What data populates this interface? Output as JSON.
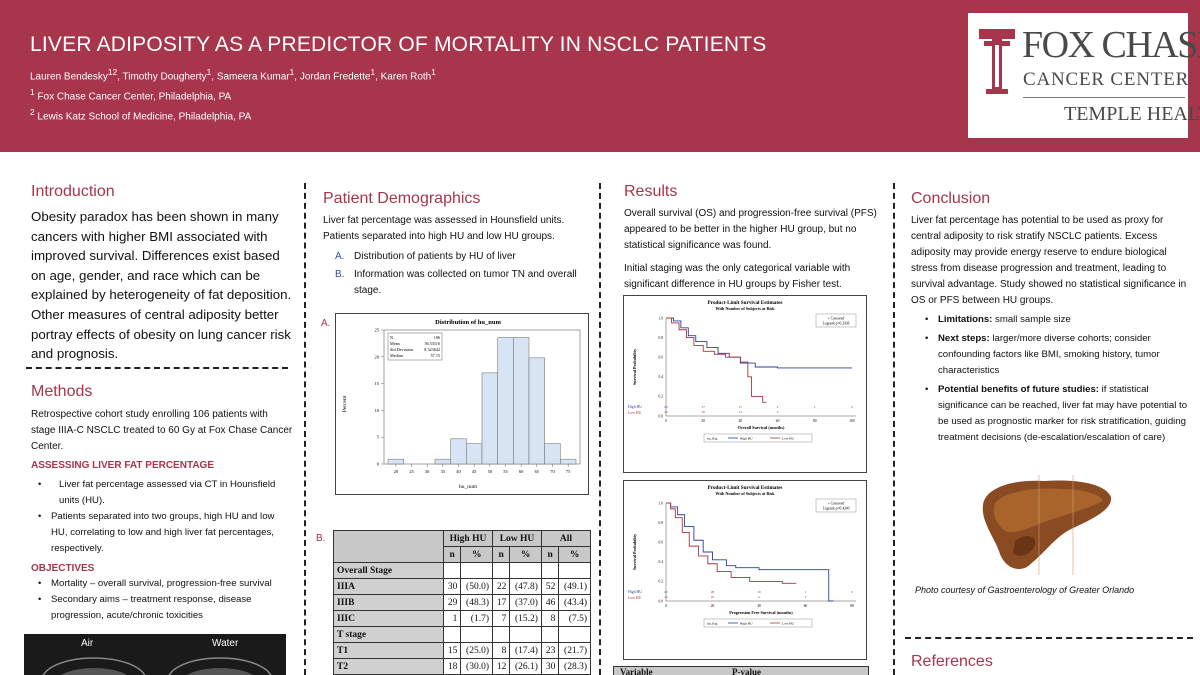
{
  "header": {
    "title": "LIVER ADIPOSITY AS A PREDICTOR OF MORTALITY IN NSCLC PATIENTS",
    "authors": [
      {
        "name": "Lauren Bendesky",
        "sup": "12"
      },
      {
        "name": "Timothy Dougherty",
        "sup": "1"
      },
      {
        "name": "Sameera Kumar",
        "sup": "1"
      },
      {
        "name": "Jordan Fredette",
        "sup": "1"
      },
      {
        "name": "Karen Roth",
        "sup": "1"
      }
    ],
    "aff1_sup": "1",
    "aff1": "Fox Chase Cancer Center, Philadelphia, PA",
    "aff2_sup": "2",
    "aff2": "Lewis Katz School of Medicine, Philadelphia, PA"
  },
  "logo": {
    "line1": "FOX CHASE",
    "line2": "CANCER CENTER",
    "line3": "TEMPLE HEALTH",
    "mark": "T"
  },
  "intro": {
    "heading": "Introduction",
    "text": "Obesity paradox has been shown in many cancers with higher BMI associated with improved survival. Differences exist based on age, gender, and race which can be explained by heterogeneity of fat deposition. Other measures of central adiposity better portray effects of obesity on lung cancer risk and prognosis."
  },
  "methods": {
    "heading": "Methods",
    "text": "Retrospective cohort study enrolling 106 patients with stage IIIA-C NSCLC treated to 60 Gy at Fox Chase Cancer Center.",
    "sub1": "ASSESSING LIVER FAT PERCENTAGE",
    "bullets1": [
      "Liver fat percentage assessed via CT in Hounsfield units (HU).",
      "Patients separated into two groups, high HU and low HU, correlating to low and high liver fat percentages, respectively."
    ],
    "sub2": "OBJECTIVES",
    "bullets2": [
      "Mortality – overall survival, progression-free survival",
      "Secondary aims – treatment response, disease progression, acute/chronic toxicities"
    ],
    "ct_left": "Air",
    "ct_right": "Water"
  },
  "demographics": {
    "heading": "Patient Demographics",
    "text": "Liver fat percentage was assessed in Hounsfield units. Patients separated into high HU and low HU groups.",
    "list": [
      {
        "marker": "A.",
        "text": "Distribution of patients by HU of liver"
      },
      {
        "marker": "B.",
        "text": "Information was collected on tumor TN and overall stage."
      }
    ],
    "fig_a_label": "A.",
    "fig_b_label": "B.",
    "table": {
      "groups": [
        "High HU",
        "Low HU",
        "All"
      ],
      "subheads": [
        "n",
        "%",
        "n",
        "%",
        "n",
        "%"
      ],
      "rows": [
        {
          "label": "Overall Stage",
          "section": true,
          "cells": []
        },
        {
          "label": "IIIA",
          "section": false,
          "cells": [
            "30",
            "(50.0)",
            "22",
            "(47.8)",
            "52",
            "(49.1)"
          ]
        },
        {
          "label": "IIIB",
          "section": false,
          "cells": [
            "29",
            "(48.3)",
            "17",
            "(37.0)",
            "46",
            "(43.4)"
          ]
        },
        {
          "label": "IIIC",
          "section": false,
          "cells": [
            "1",
            "(1.7)",
            "7",
            "(15.2)",
            "8",
            "(7.5)"
          ]
        },
        {
          "label": "T stage",
          "section": true,
          "cells": []
        },
        {
          "label": "T1",
          "section": false,
          "cells": [
            "15",
            "(25.0)",
            "8",
            "(17.4)",
            "23",
            "(21.7)"
          ]
        },
        {
          "label": "T2",
          "section": false,
          "cells": [
            "18",
            "(30.0)",
            "12",
            "(26.1)",
            "30",
            "(28.3)"
          ]
        }
      ]
    }
  },
  "results": {
    "heading": "Results",
    "text1": "Overall survival (OS) and progression-free survival (PFS) appeared to be better in the higher HU group, but no statistical significance was found.",
    "text2": "Initial staging was the only categorical variable with significant difference in HU groups by Fisher test.",
    "table_head": [
      "Variable",
      "P-value"
    ],
    "km": [
      {
        "title": "Product-Limit Survival Estimates",
        "subtitle": "With Number of Subjects at Risk",
        "legend1": "+ Censored",
        "legend2": "Logrank p=0.2436",
        "ylabel": "Survival Probability",
        "xlabel": "Overall Survival (months)",
        "xticks": [
          "0",
          "20",
          "40",
          "60",
          "80",
          "100"
        ],
        "yticks": [
          "0.0",
          "0.2",
          "0.4",
          "0.6",
          "0.8",
          "1.0"
        ],
        "risk_labels": [
          "High HU",
          "Low HU"
        ],
        "risk_high": [
          "60",
          "37",
          "17",
          "2",
          "1",
          "0"
        ],
        "risk_low": [
          "46",
          "28",
          "14",
          "0",
          "",
          ""
        ],
        "foot": [
          "hu_flag",
          "High HU",
          "Low HU"
        ]
      },
      {
        "title": "Product-Limit Survival Estimates",
        "subtitle": "With Number of Subjects at Risk",
        "legend1": "+ Censored",
        "legend2": "Logrank p=0.4240",
        "ylabel": "Survival Probability",
        "xlabel": "Progression Free Survival (months)",
        "xticks": [
          "0",
          "20",
          "40",
          "60",
          "80"
        ],
        "yticks": [
          "0.0",
          "0.2",
          "0.4",
          "0.6",
          "0.8",
          "1.0"
        ],
        "risk_labels": [
          "High HU",
          "Low HU"
        ],
        "risk_high": [
          "60",
          "28",
          "10",
          "1",
          "0"
        ],
        "risk_low": [
          "46",
          "20",
          "6",
          "0",
          ""
        ],
        "foot": [
          "hu_flag",
          "High HU",
          "Low HU"
        ]
      }
    ]
  },
  "conclusion": {
    "heading": "Conclusion",
    "text": "Liver fat percentage has potential to be used as proxy for central adiposity to risk stratify NSCLC patients. Excess adiposity may provide energy reserve to endure biological stress from disease progression and treatment, leading to survival advantage. Study showed no statistical significance in OS or PFS between HU groups.",
    "bullets": [
      {
        "label": "Limitations:",
        "text": " small sample size"
      },
      {
        "label": "Next steps:",
        "text": " larger/more diverse cohorts; consider confounding factors like BMI, smoking history, tumor characteristics"
      },
      {
        "label": "Potential benefits of future studies:",
        "text": " if statistical significance can be reached, liver fat may have potential to be used as prognostic marker for risk stratification, guiding treatment decisions (de-escalation/escalation of care)"
      }
    ],
    "photo_caption": "Photo courtesy of Gastroenterology of Greater Orlando"
  },
  "references": {
    "heading": "References"
  },
  "chart_data": {
    "type": "bar",
    "title": "Distribution of hu_num",
    "xlabel": "hu_num",
    "ylabel": "Percent",
    "categories": [
      "20",
      "25",
      "30",
      "35",
      "40",
      "45",
      "50",
      "55",
      "60",
      "65",
      "70",
      "75"
    ],
    "values": [
      0.9,
      0,
      0,
      0.9,
      4.7,
      3.8,
      17.0,
      23.6,
      23.6,
      19.8,
      3.8,
      0.9
    ],
    "xticks": [
      "20",
      "25",
      "30",
      "35",
      "40",
      "45",
      "50",
      "55",
      "60",
      "65",
      "70",
      "75"
    ],
    "yticks": [
      "0",
      "5",
      "10",
      "15",
      "20",
      "25"
    ],
    "ylim": [
      0,
      25
    ],
    "stats": [
      {
        "k": "N",
        "v": "106"
      },
      {
        "k": "Mean",
        "v": "56.53116"
      },
      {
        "k": "Std Deviation",
        "v": "8.323642"
      },
      {
        "k": "Median",
        "v": "57.15"
      }
    ]
  }
}
